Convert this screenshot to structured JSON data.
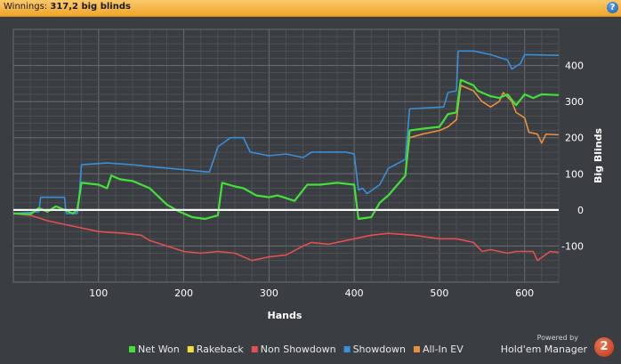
{
  "header": {
    "label": "Winnings:",
    "value": "317,2 big blinds",
    "help_icon": "?"
  },
  "brand": {
    "powered_by": "Powered by",
    "name": "Hold'em Manager",
    "badge": "2"
  },
  "chart_data": {
    "type": "line",
    "xlabel": "Hands",
    "ylabel": "Big Blinds",
    "xlim": [
      0,
      640
    ],
    "ylim": [
      -200,
      500
    ],
    "xticks": [
      100,
      200,
      300,
      400,
      500,
      600
    ],
    "yticks": [
      -100,
      0,
      100,
      200,
      300,
      400
    ],
    "grid": true,
    "legend": "bottom",
    "series": [
      {
        "name": "Net Won",
        "color": "#44e03a",
        "points": [
          [
            0,
            -10
          ],
          [
            20,
            -12
          ],
          [
            30,
            5
          ],
          [
            40,
            -5
          ],
          [
            50,
            10
          ],
          [
            60,
            0
          ],
          [
            70,
            -10
          ],
          [
            75,
            0
          ],
          [
            80,
            75
          ],
          [
            100,
            70
          ],
          [
            110,
            60
          ],
          [
            115,
            95
          ],
          [
            125,
            85
          ],
          [
            140,
            80
          ],
          [
            160,
            60
          ],
          [
            180,
            15
          ],
          [
            195,
            -5
          ],
          [
            210,
            -20
          ],
          [
            225,
            -25
          ],
          [
            240,
            -15
          ],
          [
            245,
            75
          ],
          [
            260,
            65
          ],
          [
            270,
            60
          ],
          [
            285,
            40
          ],
          [
            300,
            35
          ],
          [
            310,
            40
          ],
          [
            330,
            25
          ],
          [
            345,
            70
          ],
          [
            360,
            70
          ],
          [
            380,
            75
          ],
          [
            400,
            70
          ],
          [
            405,
            -25
          ],
          [
            420,
            -20
          ],
          [
            430,
            20
          ],
          [
            440,
            40
          ],
          [
            460,
            95
          ],
          [
            465,
            220
          ],
          [
            480,
            225
          ],
          [
            500,
            230
          ],
          [
            510,
            265
          ],
          [
            520,
            270
          ],
          [
            525,
            360
          ],
          [
            540,
            345
          ],
          [
            545,
            330
          ],
          [
            560,
            315
          ],
          [
            570,
            310
          ],
          [
            580,
            320
          ],
          [
            590,
            290
          ],
          [
            600,
            320
          ],
          [
            610,
            310
          ],
          [
            620,
            320
          ],
          [
            640,
            318
          ]
        ]
      },
      {
        "name": "Rakeback",
        "color": "#f0e040",
        "points": [
          [
            0,
            0
          ],
          [
            640,
            0
          ]
        ]
      },
      {
        "name": "Non Showdown",
        "color": "#e25050",
        "points": [
          [
            0,
            -10
          ],
          [
            20,
            -15
          ],
          [
            40,
            -30
          ],
          [
            60,
            -40
          ],
          [
            80,
            -50
          ],
          [
            100,
            -60
          ],
          [
            130,
            -65
          ],
          [
            150,
            -70
          ],
          [
            160,
            -85
          ],
          [
            180,
            -100
          ],
          [
            200,
            -115
          ],
          [
            220,
            -120
          ],
          [
            240,
            -115
          ],
          [
            260,
            -120
          ],
          [
            280,
            -140
          ],
          [
            300,
            -130
          ],
          [
            320,
            -125
          ],
          [
            340,
            -100
          ],
          [
            350,
            -90
          ],
          [
            370,
            -95
          ],
          [
            400,
            -80
          ],
          [
            420,
            -70
          ],
          [
            440,
            -65
          ],
          [
            470,
            -70
          ],
          [
            500,
            -80
          ],
          [
            520,
            -80
          ],
          [
            540,
            -90
          ],
          [
            550,
            -115
          ],
          [
            560,
            -110
          ],
          [
            570,
            -115
          ],
          [
            580,
            -120
          ],
          [
            590,
            -115
          ],
          [
            610,
            -115
          ],
          [
            615,
            -140
          ],
          [
            630,
            -115
          ],
          [
            640,
            -118
          ]
        ]
      },
      {
        "name": "Showdown",
        "color": "#3a8fd8",
        "points": [
          [
            0,
            -10
          ],
          [
            30,
            -5
          ],
          [
            32,
            35
          ],
          [
            60,
            35
          ],
          [
            62,
            -10
          ],
          [
            75,
            -10
          ],
          [
            76,
            0
          ],
          [
            80,
            125
          ],
          [
            110,
            130
          ],
          [
            140,
            125
          ],
          [
            160,
            120
          ],
          [
            230,
            105
          ],
          [
            236,
            145
          ],
          [
            240,
            175
          ],
          [
            255,
            200
          ],
          [
            270,
            200
          ],
          [
            278,
            160
          ],
          [
            300,
            150
          ],
          [
            320,
            155
          ],
          [
            340,
            145
          ],
          [
            350,
            160
          ],
          [
            390,
            160
          ],
          [
            400,
            155
          ],
          [
            405,
            55
          ],
          [
            410,
            60
          ],
          [
            415,
            45
          ],
          [
            430,
            70
          ],
          [
            440,
            115
          ],
          [
            460,
            140
          ],
          [
            465,
            280
          ],
          [
            505,
            285
          ],
          [
            510,
            325
          ],
          [
            520,
            330
          ],
          [
            522,
            440
          ],
          [
            540,
            440
          ],
          [
            560,
            430
          ],
          [
            580,
            415
          ],
          [
            585,
            390
          ],
          [
            595,
            405
          ],
          [
            600,
            430
          ],
          [
            640,
            428
          ]
        ]
      },
      {
        "name": "All-In EV",
        "color": "#e89040",
        "points": [
          [
            0,
            -10
          ],
          [
            20,
            -12
          ],
          [
            30,
            5
          ],
          [
            40,
            -5
          ],
          [
            50,
            10
          ],
          [
            60,
            0
          ],
          [
            70,
            -10
          ],
          [
            75,
            0
          ],
          [
            80,
            75
          ],
          [
            100,
            70
          ],
          [
            110,
            60
          ],
          [
            115,
            95
          ],
          [
            125,
            85
          ],
          [
            140,
            80
          ],
          [
            160,
            60
          ],
          [
            180,
            15
          ],
          [
            195,
            -5
          ],
          [
            210,
            -20
          ],
          [
            225,
            -25
          ],
          [
            240,
            -15
          ],
          [
            245,
            75
          ],
          [
            260,
            65
          ],
          [
            270,
            60
          ],
          [
            285,
            40
          ],
          [
            300,
            35
          ],
          [
            310,
            40
          ],
          [
            330,
            25
          ],
          [
            345,
            70
          ],
          [
            360,
            70
          ],
          [
            380,
            75
          ],
          [
            400,
            70
          ],
          [
            405,
            -25
          ],
          [
            420,
            -20
          ],
          [
            430,
            20
          ],
          [
            440,
            40
          ],
          [
            460,
            95
          ],
          [
            465,
            200
          ],
          [
            480,
            210
          ],
          [
            500,
            220
          ],
          [
            510,
            230
          ],
          [
            520,
            250
          ],
          [
            525,
            345
          ],
          [
            540,
            330
          ],
          [
            550,
            300
          ],
          [
            560,
            285
          ],
          [
            570,
            300
          ],
          [
            575,
            325
          ],
          [
            585,
            300
          ],
          [
            590,
            270
          ],
          [
            600,
            255
          ],
          [
            605,
            215
          ],
          [
            615,
            210
          ],
          [
            620,
            185
          ],
          [
            625,
            210
          ],
          [
            640,
            208
          ]
        ]
      }
    ]
  }
}
